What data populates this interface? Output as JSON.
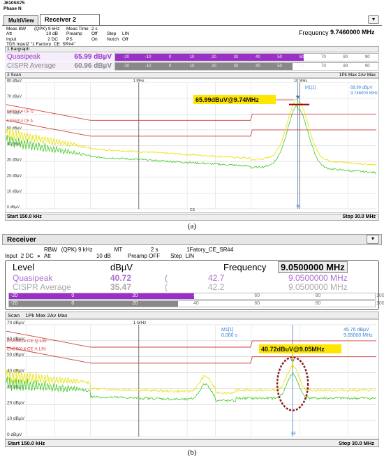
{
  "a": {
    "device": "J610SS75",
    "phase": "Phase N",
    "tabs": [
      "MultiView",
      "Receiver 2"
    ],
    "settings": [
      [
        "Meas BW",
        "(QPK) 9 kHz",
        "Meas Time",
        "2 s"
      ],
      [
        "Att",
        "10 dB",
        "Preamp",
        "Off",
        "Step",
        "LIN"
      ],
      [
        "Input",
        "2 DC",
        "PS",
        "On",
        "Notch",
        "Off"
      ]
    ],
    "tds": "TDS Input2 \"1 Factory_CE_SR#4\"",
    "frequency_label": "Frequency",
    "frequency_value": "9.7460000 MHz",
    "bargraph_title": "1 Bargraph",
    "bars": [
      {
        "label": "Quasipeak",
        "value": "65.99 dBµV",
        "level": 65.99,
        "color": "#9b30c8"
      },
      {
        "label": "CISPR Average",
        "value": "60.96 dBµV",
        "level": 60.96,
        "color": "#888888"
      }
    ],
    "bar_ticks": [
      "-20",
      "-10",
      "0",
      "10",
      "20",
      "30",
      "40",
      "50",
      "60",
      "70",
      "80",
      "90",
      "100"
    ],
    "scan_title": "2 Scan",
    "legend": "1Pk Max  2Av Max",
    "marker_label": "M1[1]",
    "marker_level": "68.99 dBµV",
    "marker_freq": "9.746000 MHz",
    "limit_labels": [
      "EN55014 CE Q",
      "EN55014 CE A"
    ],
    "y_ticks": [
      "80 dBµV",
      "70 dBµV",
      "60 dBµV",
      "50 dBµV",
      "40 dBµV",
      "30 dBµV",
      "20 dBµV",
      "10 dBµV",
      "0 dBµV"
    ],
    "x_ticks": [
      "1 MHz",
      "10 MHz"
    ],
    "annotation": "65.99dBuV@9.74MHz",
    "start": "Start 150.0 kHz",
    "stop": "Stop 30.0 MHz",
    "tf": "TF",
    "cs": "CS"
  },
  "caption_a": "(a)",
  "b": {
    "title": "Receiver",
    "settings_row1": [
      "RBW",
      "(QPK) 9 kHz",
      "MT",
      "2 s",
      "1Fatory_CE_SR#4"
    ],
    "settings_row2": [
      "Input",
      "2 DC",
      "Att",
      "10 dB",
      "Step",
      "LIN"
    ],
    "preamp": "Preamp OFF",
    "level_label": "Level",
    "unit": "dBµV",
    "frequency_label": "Frequency",
    "frequency_value": "9.0500000 MHz",
    "rows": [
      {
        "label": "Quasipeak",
        "value": "40.72",
        "limit": "42.7",
        "freq": "9.0500000 MHz",
        "color": "#b070d0"
      },
      {
        "label": "CISPR Average",
        "value": "35.47",
        "limit": "42.2",
        "freq": "9.0500000 MHz",
        "color": "#aaaaaa"
      }
    ],
    "bars": [
      {
        "level": 40.72,
        "color": "#9b30c8"
      },
      {
        "level": 35.47,
        "color": "#888888"
      }
    ],
    "bar_ticks": [
      "-20",
      "0",
      "20",
      "40",
      "60",
      "80",
      "100"
    ],
    "scan_title": "Scan",
    "legend": "1Pk Max  2Av Max",
    "marker_label": "M1[1]",
    "marker_time": "0.000 s",
    "marker_level": "45.76 dBµV",
    "marker_freq": "9.05000 MHz",
    "limit_labels": [
      "EN55014 CE Q.LIN",
      "EN55014 CE A.LIN"
    ],
    "y_ticks": [
      "70 dBµV",
      "60 dBµV",
      "50 dBµV",
      "40 dBµV",
      "30 dBµV",
      "20 dBµV",
      "10 dBµV",
      "0 dBµV"
    ],
    "x_tick": "1 MHz",
    "annotation": "40.72dBuV@9.05MHz",
    "start": "Start 150.0 kHz",
    "stop": "Stop 30.0 MHz",
    "tf": "TF"
  },
  "caption_b": "(b)",
  "colors": {
    "peak": "#e8e000",
    "avg": "#40c820",
    "limit": "#d04040",
    "annotation_bg": "#ffe600",
    "marker": "#3a7fd0"
  }
}
